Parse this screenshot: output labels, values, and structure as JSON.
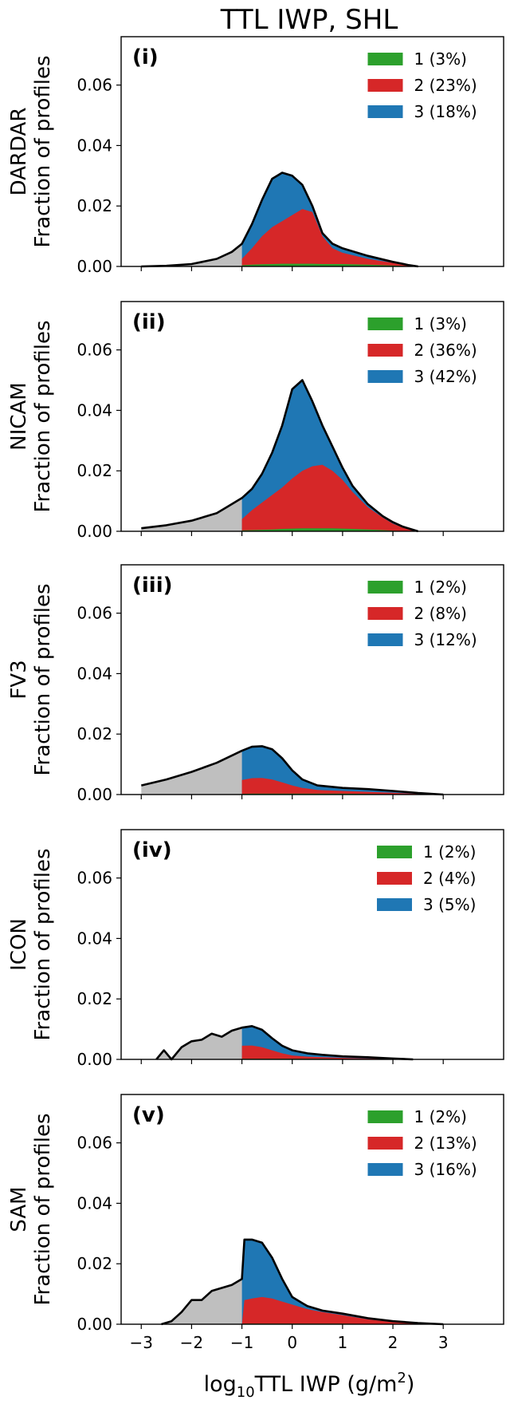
{
  "figure": {
    "title": "TTL IWP, SHL",
    "xlabel": "log₁₀TTL IWP (g/m²)",
    "xlabel_parts": {
      "prefix": "log",
      "subscript": "10",
      "middle": "TTL IWP (g/m",
      "superscript": "2",
      "suffix": ")"
    },
    "threshold_x": -1.0
  },
  "colors": {
    "class1": "#2ca02c",
    "class2": "#d62728",
    "class3": "#1f77b4",
    "below_threshold": "#bfbfbf",
    "outline": "#000000"
  },
  "chart_data": [
    {
      "type": "area",
      "panel_label": "(i)",
      "ylabel_model": "DARDAR",
      "ylabel": "Fraction of profiles",
      "xlim": [
        -3.4,
        4.2
      ],
      "ylim": [
        0,
        0.076
      ],
      "xticks": [
        -3,
        -2,
        -1,
        0,
        1,
        2,
        3
      ],
      "xticklabels_visible": false,
      "yticks": [
        "0.00",
        "0.02",
        "0.04",
        "0.06"
      ],
      "legend": {
        "placement": "top-right",
        "entries": [
          "1 (3%)",
          "2 (23%)",
          "3 (18%)"
        ]
      },
      "x": [
        -3.0,
        -2.5,
        -2.0,
        -1.5,
        -1.2,
        -1.0,
        -0.8,
        -0.6,
        -0.4,
        -0.2,
        0.0,
        0.2,
        0.4,
        0.6,
        0.8,
        1.0,
        1.5,
        2.0,
        2.3,
        2.5
      ],
      "total": [
        0.0,
        0.0002,
        0.0008,
        0.0025,
        0.0048,
        0.0075,
        0.014,
        0.022,
        0.029,
        0.031,
        0.03,
        0.027,
        0.02,
        0.011,
        0.0075,
        0.006,
        0.0035,
        0.0015,
        0.0005,
        0.0
      ],
      "class2": [
        0.0,
        0.0,
        0.0,
        0.0,
        0.0,
        0.0025,
        0.006,
        0.01,
        0.013,
        0.015,
        0.017,
        0.019,
        0.018,
        0.01,
        0.006,
        0.0045,
        0.0025,
        0.0012,
        0.0004,
        0.0
      ],
      "class1": [
        0.0,
        0.0,
        0.0,
        0.0,
        0.0,
        0.0004,
        0.0006,
        0.0007,
        0.0008,
        0.0009,
        0.0009,
        0.0009,
        0.0009,
        0.0008,
        0.0008,
        0.0008,
        0.0006,
        0.0003,
        0.0001,
        0.0
      ]
    },
    {
      "type": "area",
      "panel_label": "(ii)",
      "ylabel_model": "NICAM",
      "ylabel": "Fraction of profiles",
      "xlim": [
        -3.4,
        4.2
      ],
      "ylim": [
        0,
        0.076
      ],
      "xticks": [
        -3,
        -2,
        -1,
        0,
        1,
        2,
        3
      ],
      "xticklabels_visible": false,
      "yticks": [
        "0.00",
        "0.02",
        "0.04",
        "0.06"
      ],
      "legend": {
        "placement": "top-right",
        "entries": [
          "1 (3%)",
          "2 (36%)",
          "3 (42%)"
        ]
      },
      "x": [
        -3.0,
        -2.5,
        -2.0,
        -1.5,
        -1.0,
        -0.8,
        -0.6,
        -0.4,
        -0.2,
        0.0,
        0.2,
        0.4,
        0.6,
        0.8,
        1.0,
        1.2,
        1.5,
        1.8,
        2.0,
        2.2,
        2.5
      ],
      "total": [
        0.001,
        0.002,
        0.0035,
        0.006,
        0.011,
        0.014,
        0.019,
        0.026,
        0.035,
        0.047,
        0.05,
        0.043,
        0.035,
        0.028,
        0.021,
        0.015,
        0.009,
        0.005,
        0.003,
        0.0015,
        0.0
      ],
      "class2": [
        0.0,
        0.0,
        0.0,
        0.0,
        0.004,
        0.007,
        0.0095,
        0.012,
        0.0145,
        0.0175,
        0.02,
        0.0215,
        0.022,
        0.02,
        0.017,
        0.013,
        0.008,
        0.0045,
        0.0025,
        0.0012,
        0.0
      ],
      "class1": [
        0.0,
        0.0,
        0.0,
        0.0,
        0.0003,
        0.0004,
        0.0005,
        0.0006,
        0.0008,
        0.0009,
        0.001,
        0.001,
        0.001,
        0.001,
        0.0009,
        0.0008,
        0.0006,
        0.0004,
        0.0002,
        0.0001,
        0.0
      ]
    },
    {
      "type": "area",
      "panel_label": "(iii)",
      "ylabel_model": "FV3",
      "ylabel": "Fraction of profiles",
      "xlim": [
        -3.4,
        4.2
      ],
      "ylim": [
        0,
        0.076
      ],
      "xticks": [
        -3,
        -2,
        -1,
        0,
        1,
        2,
        3
      ],
      "xticklabels_visible": false,
      "yticks": [
        "0.00",
        "0.02",
        "0.04",
        "0.06"
      ],
      "legend": {
        "placement": "top-right",
        "entries": [
          "1 (2%)",
          "2 (8%)",
          "3 (12%)"
        ]
      },
      "x": [
        -3.0,
        -2.5,
        -2.0,
        -1.5,
        -1.0,
        -0.8,
        -0.6,
        -0.4,
        -0.2,
        0.0,
        0.2,
        0.5,
        1.0,
        1.5,
        2.0,
        2.5,
        3.0
      ],
      "total": [
        0.003,
        0.005,
        0.0075,
        0.0105,
        0.0145,
        0.0158,
        0.016,
        0.015,
        0.012,
        0.008,
        0.005,
        0.003,
        0.0022,
        0.0018,
        0.0012,
        0.0005,
        0.0
      ],
      "class2": [
        0.0,
        0.0,
        0.0,
        0.0,
        0.0048,
        0.0054,
        0.0055,
        0.005,
        0.004,
        0.003,
        0.0022,
        0.0015,
        0.0012,
        0.0009,
        0.0006,
        0.0002,
        0.0
      ],
      "class1": [
        0.0,
        0.0,
        0.0,
        0.0,
        0.0002,
        0.0003,
        0.0003,
        0.0003,
        0.0003,
        0.0003,
        0.0003,
        0.0003,
        0.0003,
        0.0002,
        0.0001,
        0.0,
        0.0
      ]
    },
    {
      "type": "area",
      "panel_label": "(iv)",
      "ylabel_model": "ICON",
      "ylabel": "Fraction of profiles",
      "xlim": [
        -3.4,
        4.2
      ],
      "ylim": [
        0,
        0.076
      ],
      "xticks": [
        -3,
        -2,
        -1,
        0,
        1,
        2,
        3
      ],
      "xticklabels_visible": false,
      "yticks": [
        "0.00",
        "0.02",
        "0.04",
        "0.06"
      ],
      "legend": {
        "placement": "top-right",
        "entries": [
          "1 (2%)",
          "2 (4%)",
          "3 (5%)"
        ]
      },
      "x": [
        -2.7,
        -2.55,
        -2.4,
        -2.2,
        -2.0,
        -1.8,
        -1.6,
        -1.4,
        -1.2,
        -1.0,
        -0.8,
        -0.6,
        -0.4,
        -0.2,
        0.0,
        0.3,
        0.6,
        1.0,
        1.5,
        2.0,
        2.4
      ],
      "total": [
        0.0,
        0.003,
        0.0,
        0.004,
        0.006,
        0.0065,
        0.0085,
        0.0075,
        0.0095,
        0.0105,
        0.011,
        0.0098,
        0.007,
        0.0045,
        0.003,
        0.002,
        0.0015,
        0.001,
        0.0007,
        0.0003,
        0.0
      ],
      "class2": [
        0.0,
        0.0,
        0.0,
        0.0,
        0.0,
        0.0,
        0.0,
        0.0,
        0.0,
        0.0045,
        0.0046,
        0.004,
        0.003,
        0.002,
        0.0013,
        0.0009,
        0.0007,
        0.0005,
        0.0003,
        0.0001,
        0.0
      ],
      "class1": [
        0.0,
        0.0,
        0.0,
        0.0,
        0.0,
        0.0,
        0.0,
        0.0,
        0.0,
        0.0002,
        0.0002,
        0.0002,
        0.0002,
        0.0002,
        0.0002,
        0.0002,
        0.0002,
        0.0001,
        0.0001,
        0.0,
        0.0
      ]
    },
    {
      "type": "area",
      "panel_label": "(v)",
      "ylabel_model": "SAM",
      "ylabel": "Fraction of profiles",
      "xlim": [
        -3.4,
        4.2
      ],
      "ylim": [
        0,
        0.076
      ],
      "xticks": [
        -3,
        -2,
        -1,
        0,
        1,
        2,
        3
      ],
      "xticklabels_visible": true,
      "xticklabels": [
        "−3",
        "−2",
        "−1",
        "0",
        "1",
        "2",
        "3"
      ],
      "yticks": [
        "0.00",
        "0.02",
        "0.04",
        "0.06"
      ],
      "legend": {
        "placement": "top-right",
        "entries": [
          "1 (2%)",
          "2 (13%)",
          "3 (16%)"
        ]
      },
      "x": [
        -2.6,
        -2.4,
        -2.2,
        -2.0,
        -1.8,
        -1.6,
        -1.4,
        -1.2,
        -1.0,
        -0.95,
        -0.8,
        -0.6,
        -0.4,
        -0.2,
        0.0,
        0.3,
        0.6,
        1.0,
        1.5,
        2.0,
        2.5,
        3.0
      ],
      "total": [
        0.0,
        0.001,
        0.004,
        0.008,
        0.008,
        0.011,
        0.012,
        0.013,
        0.015,
        0.028,
        0.028,
        0.027,
        0.022,
        0.015,
        0.009,
        0.006,
        0.0045,
        0.0035,
        0.002,
        0.001,
        0.0004,
        0.0
      ],
      "class2": [
        0.0,
        0.0,
        0.0,
        0.0,
        0.0,
        0.0,
        0.0,
        0.0,
        0.0,
        0.008,
        0.0085,
        0.009,
        0.0085,
        0.0075,
        0.0065,
        0.005,
        0.004,
        0.003,
        0.0016,
        0.0007,
        0.0002,
        0.0
      ],
      "class1": [
        0.0,
        0.0,
        0.0,
        0.0,
        0.0,
        0.0,
        0.0,
        0.0,
        0.0,
        0.0002,
        0.0002,
        0.0002,
        0.0002,
        0.0002,
        0.0002,
        0.0002,
        0.0002,
        0.0002,
        0.0001,
        0.0001,
        0.0,
        0.0
      ]
    }
  ]
}
